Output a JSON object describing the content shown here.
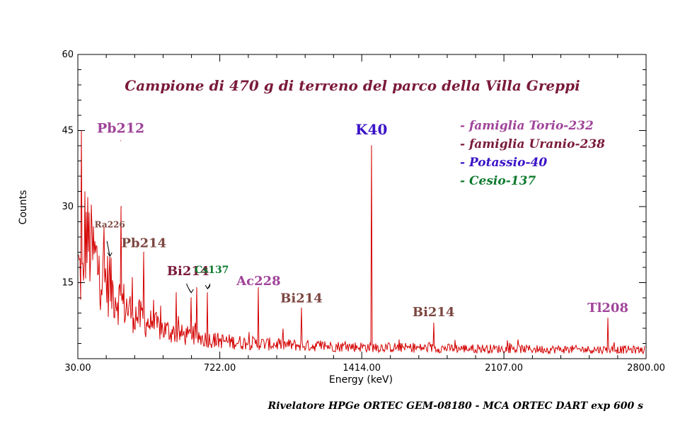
{
  "chart_data": {
    "type": "line",
    "title": "Campione di 470 g di terreno del parco della Villa Greppi",
    "footer": "Rivelatore HPGe ORTEC GEM-08180 - MCA ORTEC DART exp 600 s",
    "xlabel": "Energy (keV)",
    "ylabel": "Counts",
    "xlim": [
      30.0,
      2800.0
    ],
    "ylim": [
      0,
      60
    ],
    "xticks": [
      "30.00",
      "722.00",
      "1414.00",
      "2107.00",
      "2800.00"
    ],
    "yticks": [
      "15",
      "30",
      "45",
      "60"
    ],
    "grid": false,
    "legend_position": "top-right",
    "colors": {
      "line": "#d40000",
      "torio": "#a0449a",
      "uranio": "#7a1a3a",
      "uranio_brown": "#7b4640",
      "potassio": "#3a12c8",
      "cesio": "#0d7a2e"
    },
    "legend": [
      {
        "text": "- famiglia Torio-232",
        "color": "#a0449a"
      },
      {
        "text": "- famiglia Uranio-238",
        "color": "#7a1a3a"
      },
      {
        "text": "- Potassio-40",
        "color": "#3a12c8"
      },
      {
        "text": "- Cesio-137",
        "color": "#0d7a2e"
      }
    ],
    "peaks": [
      {
        "energy": 47,
        "counts": 45
      },
      {
        "energy": 186,
        "counts": 20
      },
      {
        "energy": 239,
        "counts": 43
      },
      {
        "energy": 242,
        "counts": 30
      },
      {
        "energy": 295,
        "counts": 16
      },
      {
        "energy": 352,
        "counts": 21
      },
      {
        "energy": 510,
        "counts": 13
      },
      {
        "energy": 583,
        "counts": 12
      },
      {
        "energy": 609,
        "counts": 14
      },
      {
        "energy": 662,
        "counts": 13
      },
      {
        "energy": 911,
        "counts": 14
      },
      {
        "energy": 1120,
        "counts": 10
      },
      {
        "energy": 1461,
        "counts": 42
      },
      {
        "energy": 1764,
        "counts": 7
      },
      {
        "energy": 2614,
        "counts": 8
      }
    ],
    "annotations": [
      {
        "label": "Pb212",
        "energy": 239,
        "counts": 44.6,
        "size": 19,
        "color": "#a0449a"
      },
      {
        "label": "Ra226",
        "energy": 186,
        "counts": 25.9,
        "size": 12,
        "color": "#7b4640"
      },
      {
        "label": "Pb214",
        "energy": 352,
        "counts": 22.0,
        "size": 18,
        "color": "#7b4640"
      },
      {
        "label": "Bi214",
        "energy": 567,
        "counts": 16.5,
        "size": 18,
        "color": "#7a1a3a"
      },
      {
        "label": "Cs137",
        "energy": 683,
        "counts": 16.9,
        "size": 14,
        "color": "#0d7a2e"
      },
      {
        "label": "Ac228",
        "energy": 911,
        "counts": 14.5,
        "size": 18,
        "color": "#a0449a"
      },
      {
        "label": "Bi214",
        "energy": 1120,
        "counts": 11.1,
        "size": 18,
        "color": "#7b4640"
      },
      {
        "label": "K40",
        "energy": 1461,
        "counts": 44.2,
        "size": 20,
        "color": "#3a12c8"
      },
      {
        "label": "Bi214",
        "energy": 1764,
        "counts": 8.4,
        "size": 18,
        "color": "#7b4640"
      },
      {
        "label": "Tl208",
        "energy": 2614,
        "counts": 9.2,
        "size": 18,
        "color": "#a0449a"
      }
    ]
  }
}
